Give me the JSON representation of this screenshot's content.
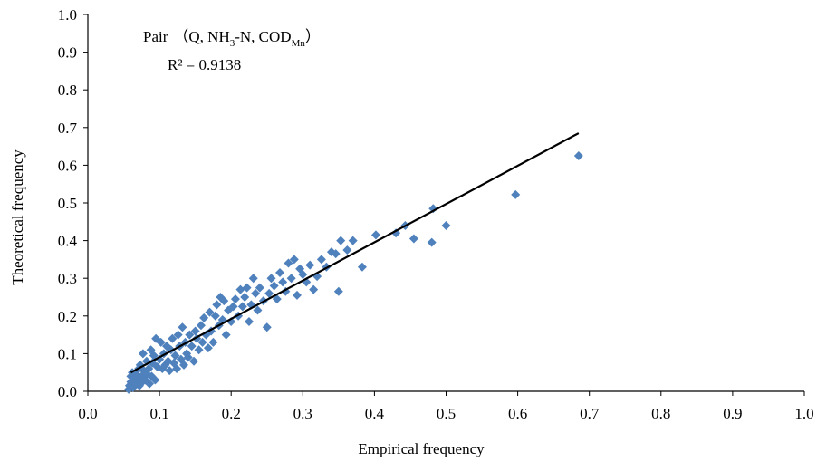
{
  "chart_data": {
    "type": "scatter",
    "xlabel": "Empirical frequency",
    "ylabel": "Theoretical frequency",
    "xlim": [
      0,
      1.0
    ],
    "ylim": [
      0,
      1.0
    ],
    "x_ticks": [
      "0.0",
      "0.1",
      "0.2",
      "0.3",
      "0.4",
      "0.5",
      "0.6",
      "0.7",
      "0.8",
      "0.9",
      "1.0"
    ],
    "y_ticks": [
      "0.0",
      "0.1",
      "0.2",
      "0.3",
      "0.4",
      "0.5",
      "0.6",
      "0.7",
      "0.8",
      "0.9",
      "1.0"
    ],
    "grid": false,
    "legend": "none",
    "annotation": {
      "label_prefix": "Pair",
      "label_open": "（Q, NH",
      "sub1": "3",
      "label_mid": "-N, COD",
      "sub2": "Mn",
      "label_close": "）",
      "r2": "R² = 0.9138"
    },
    "trendline": {
      "x": [
        0.06,
        0.685
      ],
      "y": [
        0.05,
        0.685
      ],
      "color": "#000000"
    },
    "series": [
      {
        "color": "#4F81BD",
        "marker": "diamond",
        "points": [
          [
            0.057,
            0.005
          ],
          [
            0.058,
            0.015
          ],
          [
            0.06,
            0.025
          ],
          [
            0.06,
            0.04
          ],
          [
            0.062,
            0.05
          ],
          [
            0.063,
            0.01
          ],
          [
            0.065,
            0.03
          ],
          [
            0.066,
            0.02
          ],
          [
            0.068,
            0.045
          ],
          [
            0.07,
            0.035
          ],
          [
            0.071,
            0.06
          ],
          [
            0.072,
            0.015
          ],
          [
            0.073,
            0.07
          ],
          [
            0.075,
            0.04
          ],
          [
            0.076,
            0.025
          ],
          [
            0.077,
            0.1
          ],
          [
            0.078,
            0.055
          ],
          [
            0.08,
            0.03
          ],
          [
            0.082,
            0.08
          ],
          [
            0.083,
            0.045
          ],
          [
            0.085,
            0.06
          ],
          [
            0.086,
            0.02
          ],
          [
            0.088,
            0.11
          ],
          [
            0.089,
            0.04
          ],
          [
            0.09,
            0.075
          ],
          [
            0.092,
            0.095
          ],
          [
            0.094,
            0.03
          ],
          [
            0.095,
            0.14
          ],
          [
            0.097,
            0.065
          ],
          [
            0.1,
            0.085
          ],
          [
            0.102,
            0.13
          ],
          [
            0.104,
            0.06
          ],
          [
            0.106,
            0.1
          ],
          [
            0.108,
            0.07
          ],
          [
            0.11,
            0.12
          ],
          [
            0.112,
            0.08
          ],
          [
            0.114,
            0.055
          ],
          [
            0.116,
            0.11
          ],
          [
            0.118,
            0.14
          ],
          [
            0.12,
            0.075
          ],
          [
            0.122,
            0.095
          ],
          [
            0.124,
            0.06
          ],
          [
            0.126,
            0.15
          ],
          [
            0.128,
            0.12
          ],
          [
            0.13,
            0.085
          ],
          [
            0.132,
            0.17
          ],
          [
            0.134,
            0.07
          ],
          [
            0.136,
            0.13
          ],
          [
            0.138,
            0.1
          ],
          [
            0.14,
            0.09
          ],
          [
            0.142,
            0.15
          ],
          [
            0.145,
            0.12
          ],
          [
            0.148,
            0.08
          ],
          [
            0.15,
            0.16
          ],
          [
            0.152,
            0.14
          ],
          [
            0.155,
            0.11
          ],
          [
            0.158,
            0.175
          ],
          [
            0.16,
            0.13
          ],
          [
            0.162,
            0.195
          ],
          [
            0.165,
            0.15
          ],
          [
            0.168,
            0.115
          ],
          [
            0.17,
            0.21
          ],
          [
            0.172,
            0.16
          ],
          [
            0.175,
            0.13
          ],
          [
            0.178,
            0.2
          ],
          [
            0.18,
            0.23
          ],
          [
            0.183,
            0.175
          ],
          [
            0.185,
            0.25
          ],
          [
            0.188,
            0.19
          ],
          [
            0.19,
            0.24
          ],
          [
            0.193,
            0.15
          ],
          [
            0.196,
            0.215
          ],
          [
            0.2,
            0.185
          ],
          [
            0.203,
            0.225
          ],
          [
            0.206,
            0.245
          ],
          [
            0.21,
            0.2
          ],
          [
            0.213,
            0.27
          ],
          [
            0.216,
            0.225
          ],
          [
            0.219,
            0.25
          ],
          [
            0.222,
            0.275
          ],
          [
            0.225,
            0.185
          ],
          [
            0.228,
            0.23
          ],
          [
            0.231,
            0.3
          ],
          [
            0.234,
            0.26
          ],
          [
            0.237,
            0.215
          ],
          [
            0.24,
            0.275
          ],
          [
            0.245,
            0.24
          ],
          [
            0.25,
            0.17
          ],
          [
            0.253,
            0.26
          ],
          [
            0.256,
            0.3
          ],
          [
            0.26,
            0.28
          ],
          [
            0.264,
            0.245
          ],
          [
            0.268,
            0.315
          ],
          [
            0.272,
            0.29
          ],
          [
            0.276,
            0.265
          ],
          [
            0.28,
            0.34
          ],
          [
            0.284,
            0.3
          ],
          [
            0.288,
            0.35
          ],
          [
            0.292,
            0.255
          ],
          [
            0.296,
            0.325
          ],
          [
            0.3,
            0.31
          ],
          [
            0.305,
            0.29
          ],
          [
            0.31,
            0.335
          ],
          [
            0.315,
            0.27
          ],
          [
            0.32,
            0.305
          ],
          [
            0.326,
            0.35
          ],
          [
            0.333,
            0.33
          ],
          [
            0.34,
            0.37
          ],
          [
            0.346,
            0.365
          ],
          [
            0.35,
            0.265
          ],
          [
            0.353,
            0.4
          ],
          [
            0.362,
            0.375
          ],
          [
            0.37,
            0.4
          ],
          [
            0.383,
            0.33
          ],
          [
            0.402,
            0.415
          ],
          [
            0.43,
            0.42
          ],
          [
            0.443,
            0.44
          ],
          [
            0.455,
            0.405
          ],
          [
            0.48,
            0.395
          ],
          [
            0.482,
            0.485
          ],
          [
            0.5,
            0.44
          ],
          [
            0.597,
            0.522
          ],
          [
            0.685,
            0.625
          ]
        ]
      }
    ]
  }
}
